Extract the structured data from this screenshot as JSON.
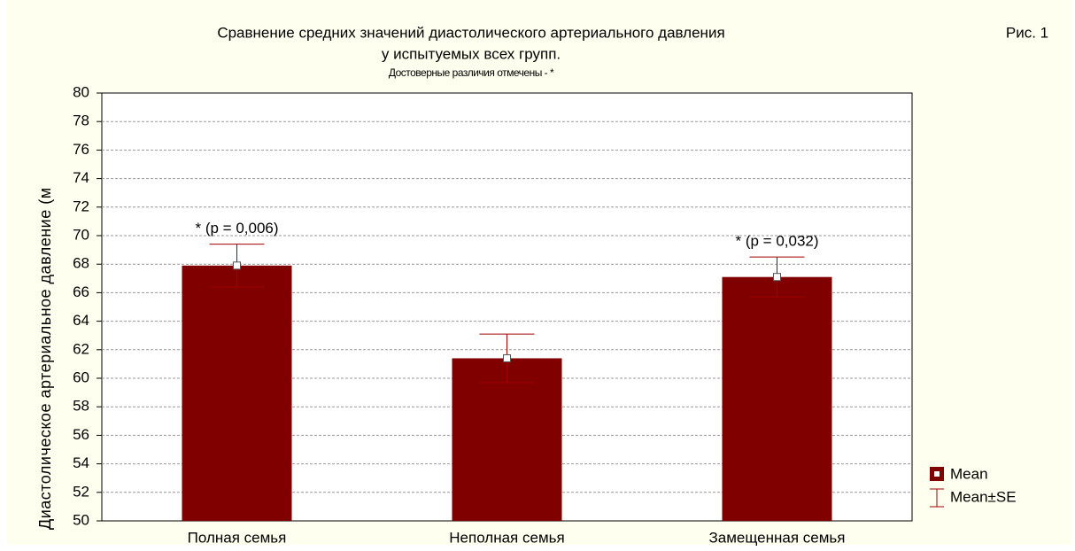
{
  "chart_data": {
    "type": "bar",
    "title": [
      "Сравнение средних значений диастолического артериального давления",
      "у испытуемых всех групп."
    ],
    "subtitle": "Достоверные различия отмечены - *",
    "figure_label": "Рис. 1",
    "y_label": "Диастолическое артериальное давление (м",
    "categories": [
      "Полная семья",
      "Неполная семья",
      "Замещенная семья"
    ],
    "series": [
      {
        "name": "Mean",
        "color": "#800000",
        "values": [
          67.9,
          61.4,
          67.1
        ],
        "errors": [
          1.5,
          1.7,
          1.4
        ]
      }
    ],
    "error_name": "Mean±SE",
    "annotations": [
      "* (p = 0,006)",
      null,
      "* (p = 0,032)"
    ],
    "ylim": [
      50,
      80
    ],
    "yticks": [
      50,
      52,
      54,
      56,
      58,
      60,
      62,
      64,
      66,
      68,
      70,
      72,
      74,
      76,
      78,
      80
    ],
    "grid": true
  }
}
